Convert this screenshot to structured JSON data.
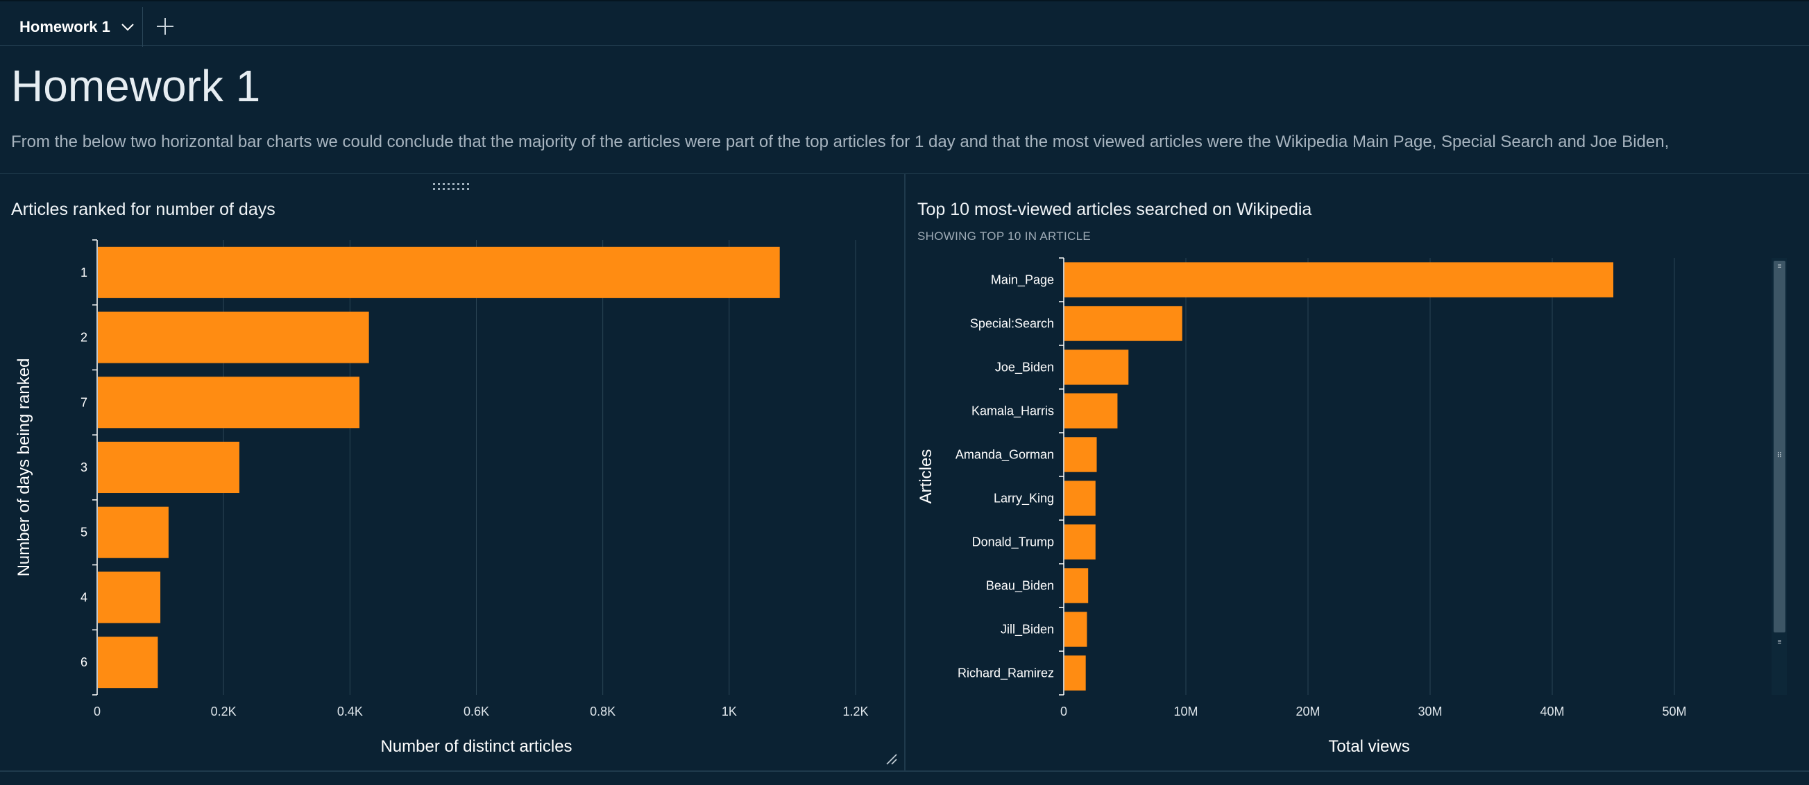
{
  "tabs": [
    {
      "label": "Homework 1",
      "active": true
    }
  ],
  "icons": {
    "tab_menu": "chevron-down-icon",
    "add_tab": "plus-icon",
    "drag": "drag-handle-icon",
    "resize": "resize-corner-icon"
  },
  "page": {
    "title": "Homework 1",
    "description": "From the below two horizontal bar charts we could conclude that the majority of the articles were part of the top articles for 1 day and that the most viewed articles were the Wikipedia Main Page, Special Search and Joe Biden,"
  },
  "colors": {
    "bar": "#ff8c12",
    "background": "#0b2233",
    "grid": "#2a4454"
  },
  "chart_data": [
    {
      "type": "bar",
      "orientation": "horizontal",
      "title": "Articles ranked for number of days",
      "xlabel": "Number of distinct articles",
      "ylabel": "Number of days being ranked",
      "categories": [
        "1",
        "2",
        "7",
        "3",
        "5",
        "4",
        "6"
      ],
      "values": [
        1080,
        430,
        415,
        225,
        113,
        100,
        96
      ],
      "xlim": [
        0,
        1200
      ],
      "xticks": [
        0,
        200,
        400,
        600,
        800,
        1000,
        1200
      ],
      "xtick_labels": [
        "0",
        "0.2K",
        "0.4K",
        "0.6K",
        "0.8K",
        "1K",
        "1.2K"
      ],
      "grid": true
    },
    {
      "type": "bar",
      "orientation": "horizontal",
      "title": "Top 10 most-viewed articles searched on Wikipedia",
      "subtitle": "SHOWING TOP 10 IN ARTICLE",
      "xlabel": "Total views",
      "ylabel": "Articles",
      "categories": [
        "Main_Page",
        "Special:Search",
        "Joe_Biden",
        "Kamala_Harris",
        "Amanda_Gorman",
        "Larry_King",
        "Donald_Trump",
        "Beau_Biden",
        "Jill_Biden",
        "Richard_Ramirez"
      ],
      "values": [
        45000000,
        9700000,
        5300000,
        4400000,
        2700000,
        2600000,
        2600000,
        2000000,
        1900000,
        1800000
      ],
      "xlim": [
        0,
        50000000
      ],
      "xticks": [
        0,
        10000000,
        20000000,
        30000000,
        40000000,
        50000000
      ],
      "xtick_labels": [
        "0",
        "10M",
        "20M",
        "30M",
        "40M",
        "50M"
      ],
      "grid": true
    }
  ]
}
